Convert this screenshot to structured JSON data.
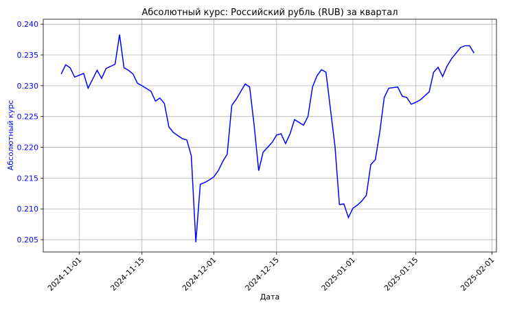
{
  "chart_data": {
    "type": "line",
    "title": "Абсолютный курс: Российский рубль (RUB) за квартал",
    "xlabel": "Дата",
    "ylabel": "Абсолютный курс",
    "ylabel_color": "#0000ff",
    "line_color": "#0000ff",
    "grid": true,
    "x_ticks": [
      "2024-11-01",
      "2024-11-15",
      "2024-12-01",
      "2024-12-15",
      "2025-01-01",
      "2025-01-15",
      "2025-02-01"
    ],
    "y_ticks": [
      "0.205",
      "0.210",
      "0.215",
      "0.220",
      "0.225",
      "0.230",
      "0.235",
      "0.240"
    ],
    "xlim": [
      "2024-10-24",
      "2025-02-02"
    ],
    "ylim": [
      0.203,
      0.2408
    ],
    "series": [
      {
        "x": [
          "2024-10-28",
          "2024-10-29",
          "2024-10-30",
          "2024-10-31",
          "2024-11-02",
          "2024-11-03",
          "2024-11-05",
          "2024-11-06",
          "2024-11-07",
          "2024-11-09",
          "2024-11-10",
          "2024-11-11",
          "2024-11-12",
          "2024-11-13",
          "2024-11-14",
          "2024-11-15",
          "2024-11-17",
          "2024-11-18",
          "2024-11-19",
          "2024-11-20",
          "2024-11-21",
          "2024-11-22",
          "2024-11-24",
          "2024-11-25",
          "2024-11-26",
          "2024-11-27",
          "2024-11-28",
          "2024-11-29",
          "2024-11-30",
          "2024-12-01",
          "2024-12-02",
          "2024-12-03",
          "2024-12-04",
          "2024-12-05",
          "2024-12-06",
          "2024-12-08",
          "2024-12-09",
          "2024-12-10",
          "2024-12-11",
          "2024-12-12",
          "2024-12-14",
          "2024-12-15",
          "2024-12-16",
          "2024-12-17",
          "2024-12-18",
          "2024-12-19",
          "2024-12-21",
          "2024-12-22",
          "2024-12-23",
          "2024-12-24",
          "2024-12-25",
          "2024-12-26",
          "2024-12-28",
          "2024-12-29",
          "2024-12-30",
          "2024-12-31",
          "2025-01-01",
          "2025-01-02",
          "2025-01-03",
          "2025-01-04",
          "2025-01-05",
          "2025-01-06",
          "2025-01-07",
          "2025-01-08",
          "2025-01-09",
          "2025-01-11",
          "2025-01-12",
          "2025-01-13",
          "2025-01-14",
          "2025-01-15",
          "2025-01-16",
          "2025-01-18",
          "2025-01-19",
          "2025-01-20",
          "2025-01-21",
          "2025-01-22",
          "2025-01-23",
          "2025-01-25",
          "2025-01-26",
          "2025-01-27",
          "2025-01-28"
        ],
        "values": [
          0.2319,
          0.2334,
          0.2329,
          0.2314,
          0.232,
          0.2296,
          0.2325,
          0.2312,
          0.2328,
          0.2335,
          0.2383,
          0.2329,
          0.2325,
          0.2319,
          0.2304,
          0.23,
          0.2291,
          0.2275,
          0.228,
          0.2271,
          0.2233,
          0.2224,
          0.2214,
          0.2212,
          0.2186,
          0.2046,
          0.214,
          0.2143,
          0.2147,
          0.2152,
          0.2162,
          0.2177,
          0.2189,
          0.2268,
          0.2278,
          0.2303,
          0.2298,
          0.2236,
          0.2162,
          0.2192,
          0.2208,
          0.222,
          0.2222,
          0.2206,
          0.2222,
          0.2245,
          0.2236,
          0.225,
          0.2298,
          0.2316,
          0.2326,
          0.2322,
          0.2202,
          0.2107,
          0.2108,
          0.2086,
          0.2101,
          0.2106,
          0.2113,
          0.2122,
          0.2172,
          0.218,
          0.2225,
          0.2281,
          0.2296,
          0.2298,
          0.2283,
          0.2281,
          0.227,
          0.2273,
          0.2277,
          0.229,
          0.2322,
          0.233,
          0.2315,
          0.2332,
          0.2344,
          0.2362,
          0.2365,
          0.2365,
          0.2353
        ]
      }
    ]
  }
}
